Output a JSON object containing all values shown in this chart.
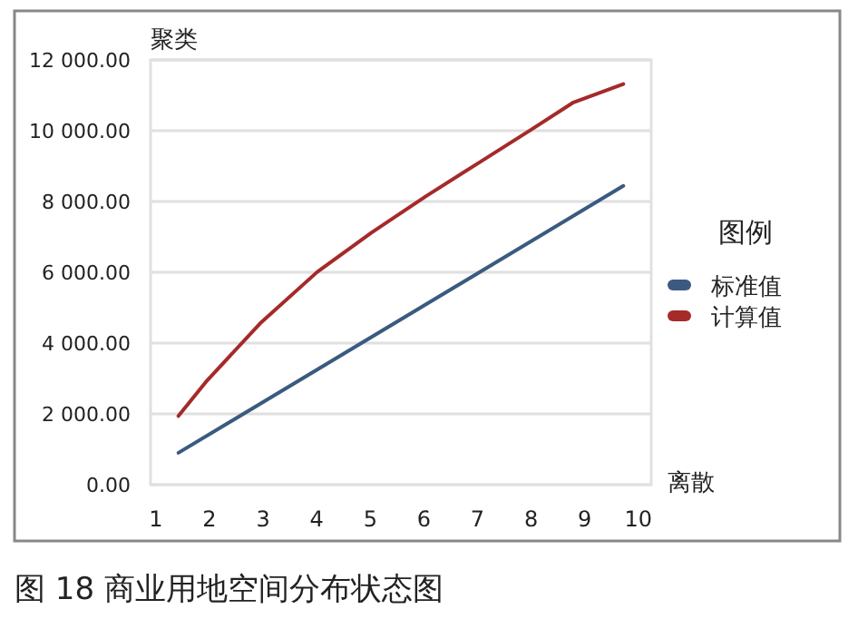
{
  "chart_data": {
    "type": "line",
    "xlabel": "离散",
    "ylabel": "聚类",
    "legend_title": "图例",
    "legend": "right",
    "grid": "y",
    "xlim": [
      0.9,
      10.24
    ],
    "ylim": [
      0,
      12000
    ],
    "xticks": [
      1,
      2,
      3,
      4,
      5,
      6,
      7,
      8,
      9,
      10
    ],
    "yticks": [
      {
        "value": 0,
        "label": "0.00"
      },
      {
        "value": 2000,
        "label": "2 000.00"
      },
      {
        "value": 4000,
        "label": "4 000.00"
      },
      {
        "value": 6000,
        "label": "6 000.00"
      },
      {
        "value": 8000,
        "label": "8 000.00"
      },
      {
        "value": 10000,
        "label": "10 000.00"
      },
      {
        "value": 12000,
        "label": "12 000.00"
      }
    ],
    "series": [
      {
        "name": "标准值",
        "color": "#3c5a80",
        "x": [
          1.42,
          9.72
        ],
        "values": [
          900,
          8440
        ]
      },
      {
        "name": "计算值",
        "color": "#a52a2a",
        "x": [
          1.42,
          1.93,
          2.94,
          4.01,
          5.02,
          6.04,
          6.99,
          8.0,
          8.79,
          9.72
        ],
        "values": [
          1940,
          2900,
          4550,
          6010,
          7120,
          8150,
          9060,
          10030,
          10800,
          11320
        ]
      }
    ],
    "annotations": [
      "图 18 商业用地空间分布状态图"
    ]
  }
}
